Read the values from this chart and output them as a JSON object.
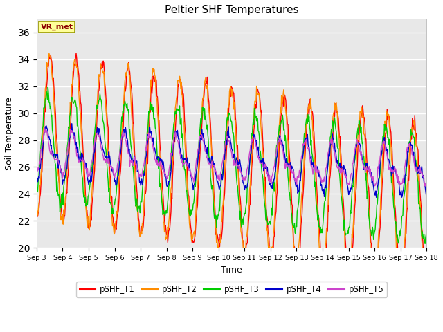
{
  "title": "Peltier SHF Temperatures",
  "xlabel": "Time",
  "ylabel": "Soil Temperature",
  "ylim": [
    20,
    37
  ],
  "yticks": [
    20,
    22,
    24,
    26,
    28,
    30,
    32,
    34,
    36
  ],
  "plot_bg_color": "#e8e8e8",
  "fig_bg_color": "#ffffff",
  "annotation_text": "VR_met",
  "annotation_box_facecolor": "#ffff99",
  "annotation_box_edgecolor": "#999900",
  "annotation_text_color": "#8b0000",
  "series_colors": {
    "pSHF_T1": "#ff0000",
    "pSHF_T2": "#ff8c00",
    "pSHF_T3": "#00cc00",
    "pSHF_T4": "#0000cc",
    "pSHF_T5": "#cc44cc"
  },
  "linewidth": 1.0,
  "xtick_labels": [
    "Sep 3",
    "Sep 4",
    "Sep 5",
    "Sep 6",
    "Sep 7",
    "Sep 8",
    "Sep 9",
    "Sep 10",
    "Sep 11",
    "Sep 12",
    "Sep 13",
    "Sep 14",
    "Sep 15",
    "Sep 16",
    "Sep 17",
    "Sep 18"
  ],
  "legend_labels": [
    "pSHF_T1",
    "pSHF_T2",
    "pSHF_T3",
    "pSHF_T4",
    "pSHF_T5"
  ]
}
